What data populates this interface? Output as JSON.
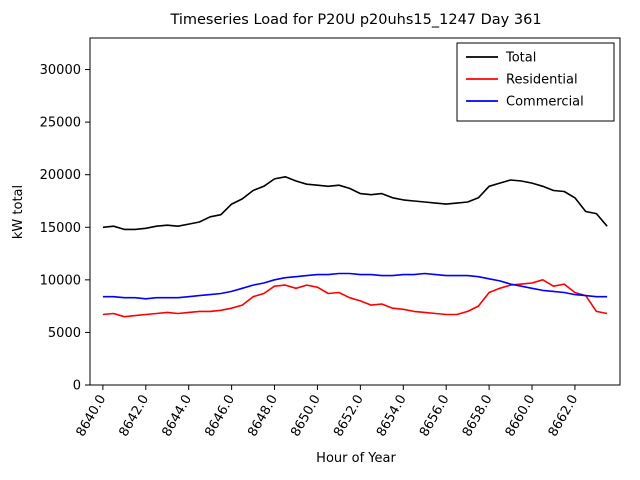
{
  "chart_data": {
    "type": "line",
    "title": "Timeseries Load for P20U p20uhs15_1247  Day 361",
    "xlabel": "Hour of Year",
    "ylabel": "kW total",
    "grid": false,
    "legend_position": "upper right",
    "xlim": [
      8639.4,
      8664.1
    ],
    "ylim": [
      0,
      33000
    ],
    "xticks": [
      8640,
      8642,
      8644,
      8646,
      8648,
      8650,
      8652,
      8654,
      8656,
      8658,
      8660,
      8662
    ],
    "xtick_labels": [
      "8640.0",
      "8642.0",
      "8644.0",
      "8646.0",
      "8648.0",
      "8650.0",
      "8652.0",
      "8654.0",
      "8656.0",
      "8658.0",
      "8660.0",
      "8662.0"
    ],
    "yticks": [
      0,
      5000,
      10000,
      15000,
      20000,
      25000,
      30000
    ],
    "ytick_labels": [
      "0",
      "5000",
      "10000",
      "15000",
      "20000",
      "25000",
      "30000"
    ],
    "x": [
      8640.0,
      8640.5,
      8641.0,
      8641.5,
      8642.0,
      8642.5,
      8643.0,
      8643.5,
      8644.0,
      8644.5,
      8645.0,
      8645.5,
      8646.0,
      8646.5,
      8647.0,
      8647.5,
      8648.0,
      8648.5,
      8649.0,
      8649.5,
      8650.0,
      8650.5,
      8651.0,
      8651.5,
      8652.0,
      8652.5,
      8653.0,
      8653.5,
      8654.0,
      8654.5,
      8655.0,
      8655.5,
      8656.0,
      8656.5,
      8657.0,
      8657.5,
      8658.0,
      8658.5,
      8659.0,
      8659.5,
      8660.0,
      8660.5,
      8661.0,
      8661.5,
      8662.0,
      8662.5,
      8663.0,
      8663.5
    ],
    "series": [
      {
        "name": "Total",
        "color": "#000000",
        "values": [
          15000,
          15100,
          14800,
          14800,
          14900,
          15100,
          15200,
          15100,
          15300,
          15500,
          16000,
          16200,
          17200,
          17700,
          18500,
          18900,
          19600,
          19800,
          19400,
          19100,
          19000,
          18900,
          19000,
          18700,
          18200,
          18100,
          18200,
          17800,
          17600,
          17500,
          17400,
          17300,
          17200,
          17300,
          17400,
          17800,
          18900,
          19200,
          19500,
          19400,
          19200,
          18900,
          18500,
          18400,
          17800,
          16500,
          16300,
          15100
        ]
      },
      {
        "name": "Residential",
        "color": "#ff0000",
        "values": [
          6700,
          6800,
          6500,
          6600,
          6700,
          6800,
          6900,
          6800,
          6900,
          7000,
          7000,
          7100,
          7300,
          7600,
          8400,
          8700,
          9400,
          9500,
          9200,
          9500,
          9300,
          8700,
          8800,
          8300,
          8000,
          7600,
          7700,
          7300,
          7200,
          7000,
          6900,
          6800,
          6700,
          6700,
          7000,
          7500,
          8800,
          9200,
          9500,
          9600,
          9700,
          10000,
          9400,
          9600,
          8800,
          8500,
          7000,
          6800
        ]
      },
      {
        "name": "Commercial",
        "color": "#0000ff",
        "values": [
          8400,
          8400,
          8300,
          8300,
          8200,
          8300,
          8300,
          8300,
          8400,
          8500,
          8600,
          8700,
          8900,
          9200,
          9500,
          9700,
          10000,
          10200,
          10300,
          10400,
          10500,
          10500,
          10600,
          10600,
          10500,
          10500,
          10400,
          10400,
          10500,
          10500,
          10600,
          10500,
          10400,
          10400,
          10400,
          10300,
          10100,
          9900,
          9600,
          9400,
          9200,
          9000,
          8900,
          8800,
          8600,
          8500,
          8400,
          8400
        ]
      }
    ]
  }
}
